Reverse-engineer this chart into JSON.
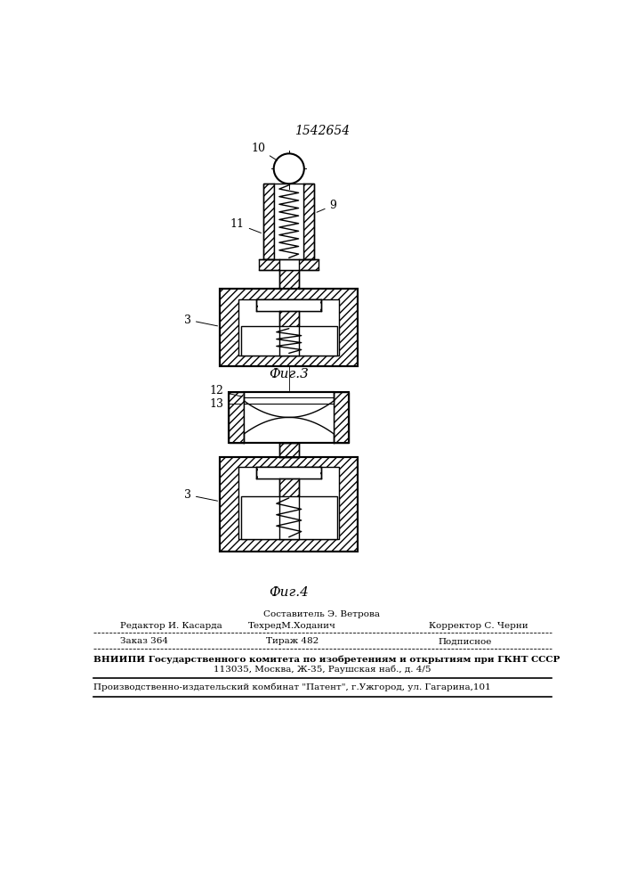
{
  "patent_number": "1542654",
  "fig3_label": "Фиг.3",
  "fig4_label": "Фиг.4",
  "footer": {
    "line1_center": "Составитель Э. Ветрова",
    "line2_left": "Редактор И. Касарда",
    "line2_mid": "ТехредМ.Ходанич",
    "line2_right": "Корректор С. Черни",
    "line3_left": "Заказ 364",
    "line3_mid": "Тираж 482",
    "line3_right": "Подписное",
    "line4": "ВНИИПИ Государственного комитета по изобретениям и открытиям при ГКНТ СССР",
    "line5": "113035, Москва, Ж-35, Раушская наб., д. 4/5",
    "line6": "Производственно-издательский комбинат \"Патент\", г.Ужгород, ул. Гагарина,101"
  },
  "lc": "#000000",
  "bg": "#ffffff"
}
